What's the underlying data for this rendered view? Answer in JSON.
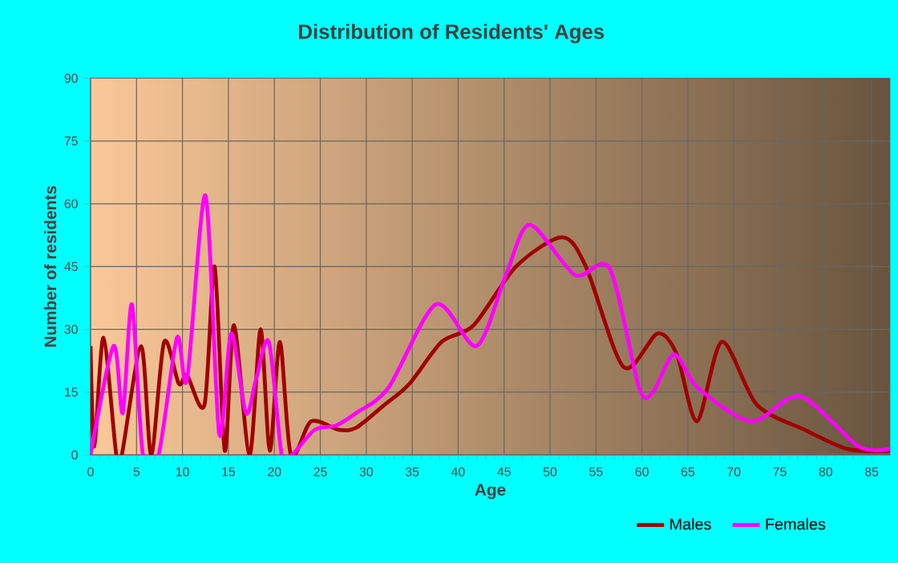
{
  "chart_data": {
    "type": "line",
    "title": "Distribution of Residents' Ages",
    "xlabel": "Age",
    "ylabel": "Number of residents",
    "xlim": [
      0,
      87
    ],
    "ylim": [
      0,
      90
    ],
    "xticks": [
      0,
      5,
      10,
      15,
      20,
      25,
      30,
      35,
      40,
      45,
      50,
      55,
      60,
      65,
      70,
      75,
      80,
      85
    ],
    "yticks": [
      0,
      15,
      30,
      45,
      60,
      75,
      90
    ],
    "grid": true,
    "legend": "bottom right",
    "marker": "none",
    "line_style": "solid",
    "series": [
      {
        "name": "Males",
        "color": "#a00000",
        "x": [
          0,
          0.4,
          1.4,
          2.8,
          3.4,
          5.5,
          6.6,
          8,
          9.6,
          10.5,
          12.4,
          13.5,
          14.6,
          15.6,
          17.3,
          18.5,
          19.5,
          20.6,
          21.8,
          24,
          27,
          28.9,
          32,
          34.7,
          38.2,
          41.7,
          46.3,
          51.3,
          53.9,
          58,
          61.7,
          63.8,
          66,
          68.7,
          72.5,
          77.7,
          82.4,
          87
        ],
        "values": [
          26,
          2,
          28,
          0,
          0,
          26,
          0,
          27,
          17,
          19,
          12,
          45,
          1,
          31,
          0,
          30,
          1,
          27,
          0,
          8,
          6,
          6.5,
          12,
          17,
          27,
          31,
          45,
          52,
          45,
          21,
          29,
          24,
          8,
          27,
          12,
          6,
          1.4,
          1
        ]
      },
      {
        "name": "Females",
        "color": "#ff00ff",
        "x": [
          0,
          2.5,
          3.5,
          4.5,
          5.7,
          7.4,
          9.4,
          10.5,
          12.5,
          14,
          15.3,
          16.9,
          18,
          19.4,
          20.8,
          21.9,
          24.4,
          26.7,
          28.9,
          32.4,
          37.6,
          42,
          45.2,
          47.8,
          52.7,
          56.5,
          59.7,
          61.2,
          63.5,
          66.1,
          71.9,
          77.2,
          83.6,
          87
        ],
        "values": [
          0,
          26,
          10,
          36,
          0,
          0,
          28,
          18,
          62,
          5,
          29,
          10,
          18,
          27,
          0,
          0,
          6,
          7,
          10,
          16,
          36,
          26,
          43,
          55,
          43,
          44.5,
          16,
          15,
          24,
          16,
          8,
          14,
          2,
          1.5
        ]
      }
    ]
  }
}
